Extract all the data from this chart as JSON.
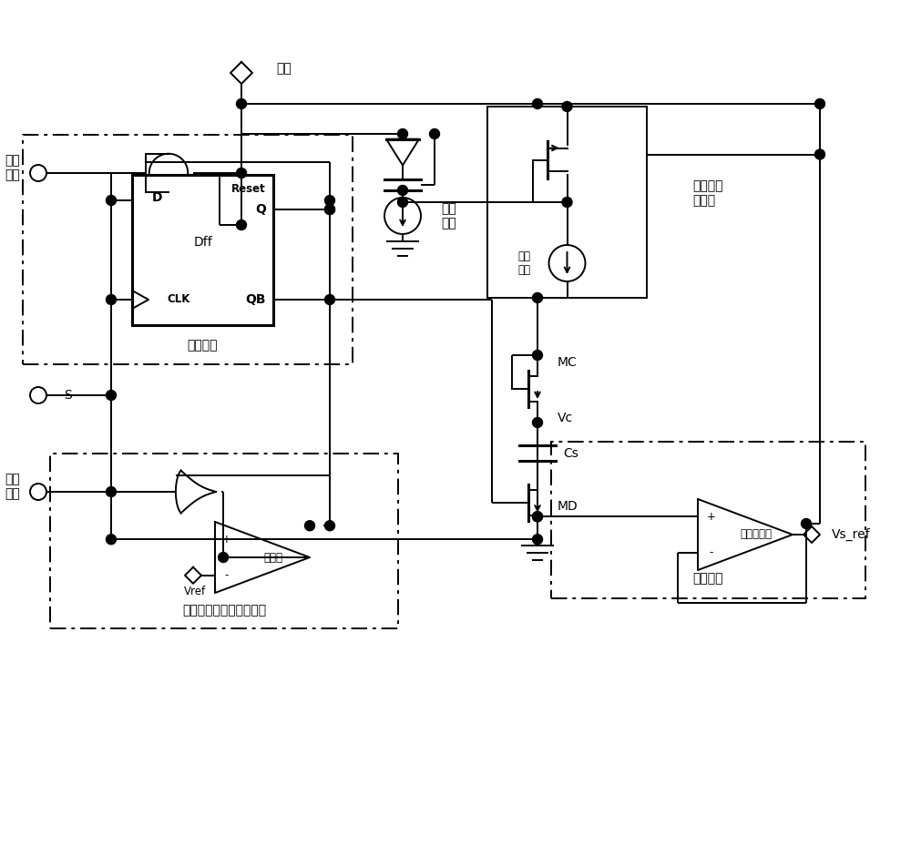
{
  "bg_color": "#ffffff",
  "lw": 1.4,
  "lw_thick": 2.2,
  "fs": 10,
  "fs_small": 8.5,
  "labels": {
    "power": "电源",
    "reset": "复位\n信号",
    "s_signal": "S",
    "enable": "使能\n信号",
    "dff_name": "Dff",
    "d_pin": "D",
    "clk_pin": "CLK",
    "reset_pin": "Reset",
    "q_pin": "Q",
    "qb_pin": "QB",
    "shutdown": "关断电路",
    "bias_label": "偏置\n电流",
    "charge_label": "充电\n电流",
    "charge_gen": "充电电流\n发生器",
    "mc_label": "MC",
    "vc_label": "Vc",
    "vref_label": "Vref",
    "cs_label": "Cs",
    "md_label": "MD",
    "comparator": "比较器",
    "soft_start": "软启动过程结束判断电路",
    "opamp": "运算放大器",
    "current_limit": "限流电路",
    "vs_ref": "Vs_ref"
  }
}
